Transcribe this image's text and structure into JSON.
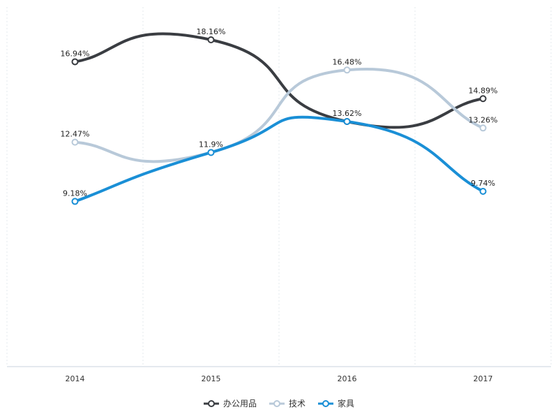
{
  "chart_data": {
    "type": "line",
    "title": "",
    "xlabel": "",
    "ylabel": "",
    "categories": [
      "2014",
      "2015",
      "2016",
      "2017"
    ],
    "ylim": [
      0,
      20
    ],
    "grid": "vertical-dotted",
    "legend_position": "bottom-center",
    "series": [
      {
        "name": "办公用品",
        "color": "#3a3d42",
        "values": [
          16.94,
          18.16,
          13.62,
          14.89
        ],
        "labels": [
          "16.94%",
          "18.16%",
          "13.62%",
          "14.89%"
        ]
      },
      {
        "name": "技术",
        "color": "#b8c9d9",
        "values": [
          12.47,
          11.9,
          16.48,
          13.26
        ],
        "labels": [
          "12.47%",
          "11.9%",
          "16.48%",
          "13.26%"
        ]
      },
      {
        "name": "家具",
        "color": "#1a8fd6",
        "values": [
          9.18,
          11.9,
          13.62,
          9.74
        ],
        "labels": [
          "9.18%",
          "",
          "",
          "9.74%"
        ]
      }
    ]
  }
}
